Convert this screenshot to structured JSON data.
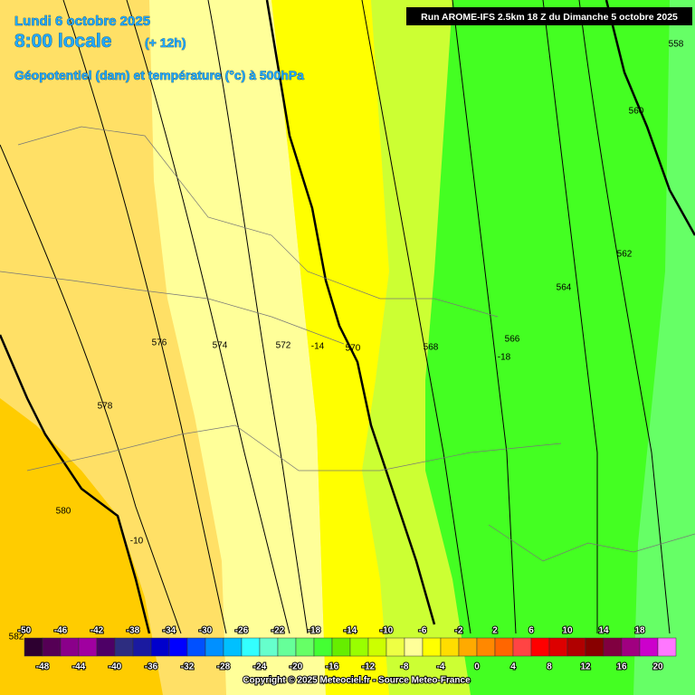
{
  "header": {
    "date": "Lundi 6 octobre 2025",
    "time": "8:00 locale",
    "offset": "(+ 12h)",
    "field": "Géopotentiel (dam) et température (°c) à 500hPa",
    "run": "Run AROME-IFS 2.5km 18 Z du Dimanche 5 octobre 2025"
  },
  "contour_labels": [
    "558",
    "560",
    "562",
    "564",
    "566",
    "568",
    "570",
    "572",
    "574",
    "576",
    "578",
    "580",
    "582",
    "-14",
    "-18",
    "-10"
  ],
  "colorbar": {
    "top_labels": [
      "-50",
      "-46",
      "-42",
      "-38",
      "-34",
      "-30",
      "-26",
      "-22",
      "-18",
      "-14",
      "-10",
      "-6",
      "-2",
      "2",
      "6",
      "10",
      "14",
      "18"
    ],
    "bottom_labels": [
      "-48",
      "-44",
      "-40",
      "-36",
      "-32",
      "-28",
      "-24",
      "-20",
      "-16",
      "-12",
      "-8",
      "-4",
      "0",
      "4",
      "8",
      "12",
      "16",
      "20"
    ],
    "colors": [
      "#2d0030",
      "#550055",
      "#8a008a",
      "#a000a0",
      "#4d0066",
      "#2d2d80",
      "#1a1aa0",
      "#0000cc",
      "#0000ff",
      "#0050ff",
      "#0090ff",
      "#00c0ff",
      "#33ffff",
      "#66ffcc",
      "#66ff99",
      "#66ff66",
      "#44ff33",
      "#66ee00",
      "#99ff00",
      "#ccff00",
      "#eeff44",
      "#ffff99",
      "#ffff00",
      "#ffdd00",
      "#ffaa00",
      "#ff8800",
      "#ff6600",
      "#ff4444",
      "#ff0000",
      "#dd0000",
      "#b00000",
      "#880000",
      "#800040",
      "#a00080",
      "#cc00cc",
      "#ff77ff"
    ]
  },
  "copyright": "Copyright © 2025 Meteociel.fr - Source Meteo-France"
}
